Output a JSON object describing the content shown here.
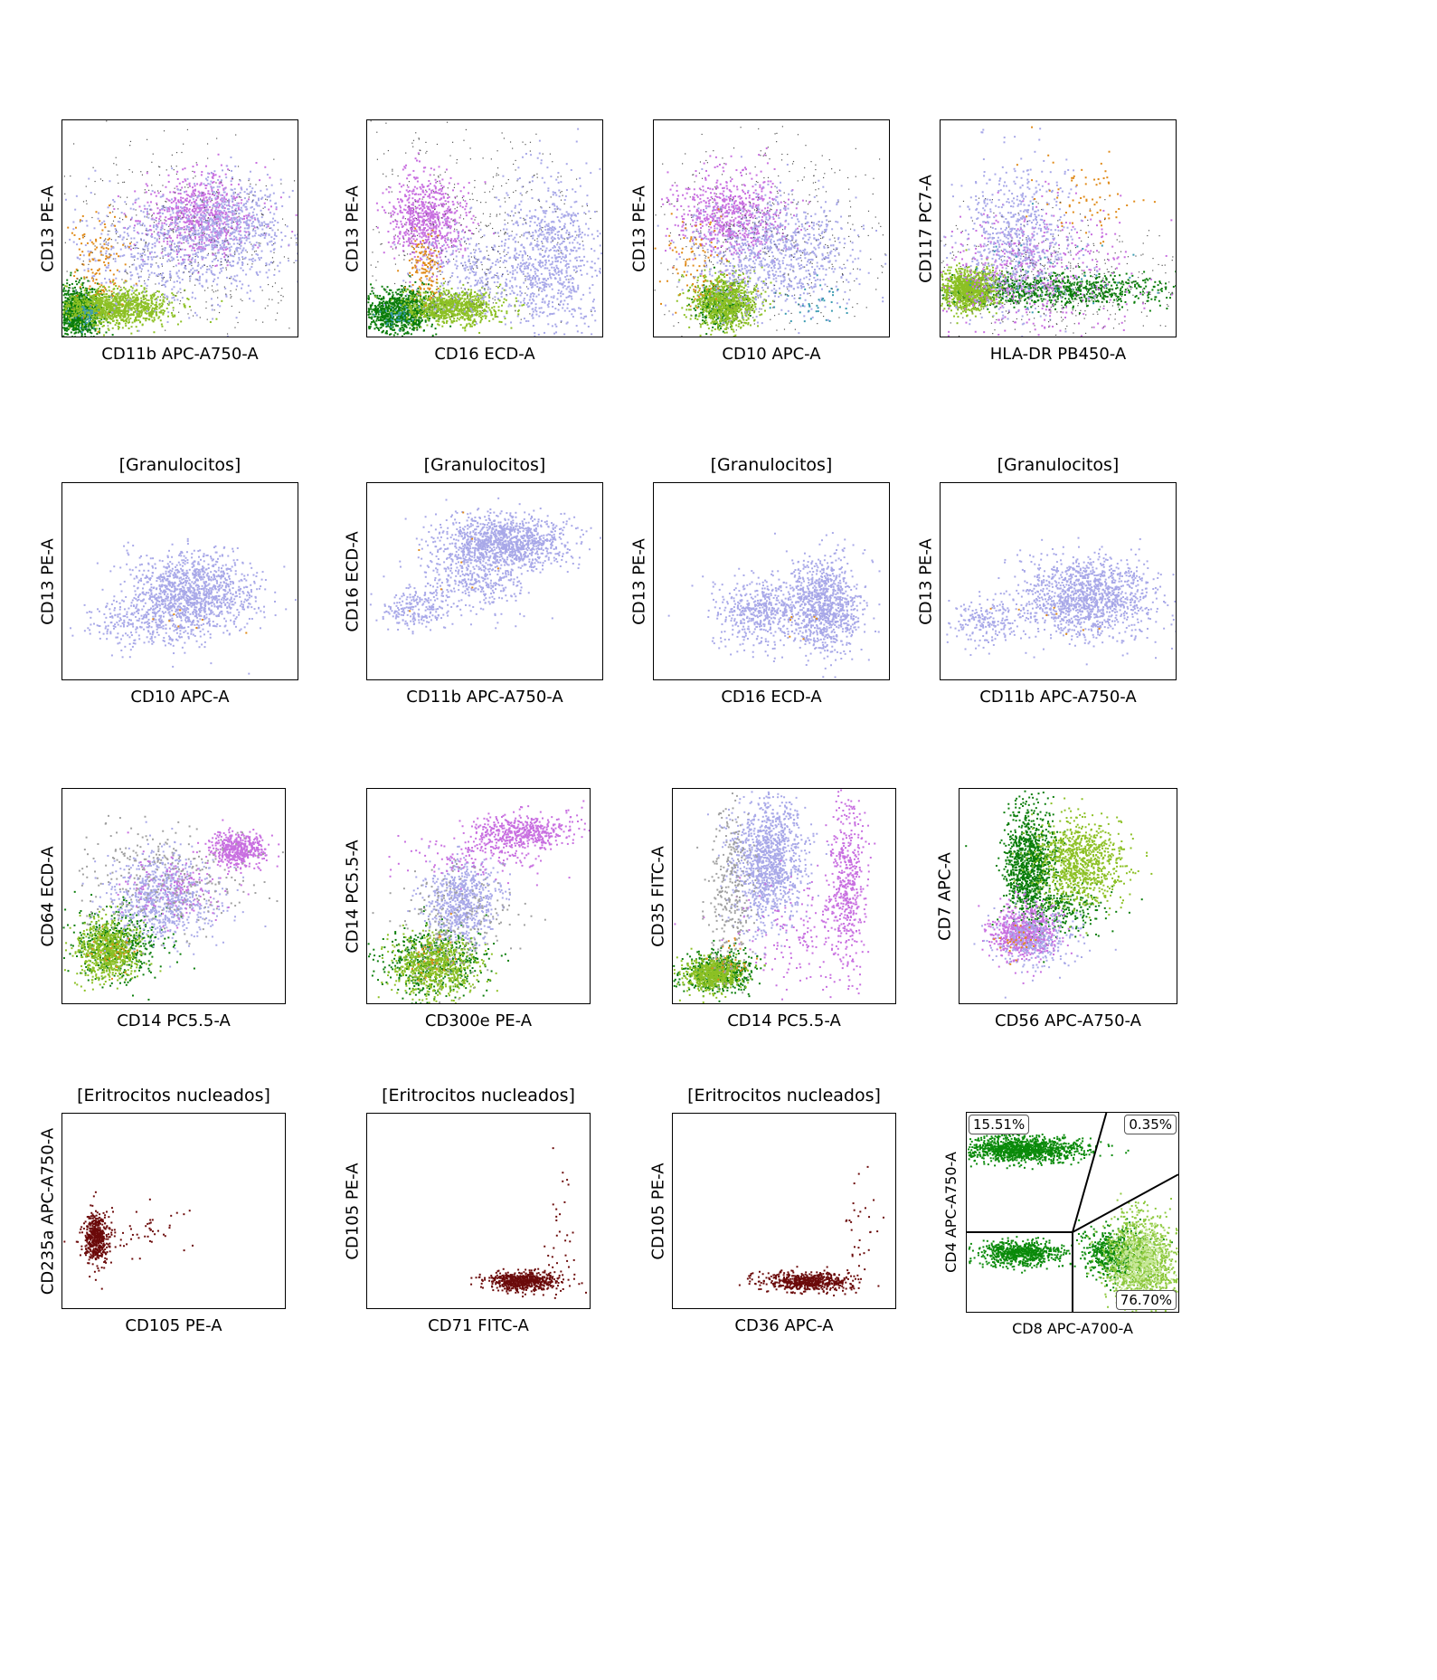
{
  "chart_data": [
    {
      "type": "scatter",
      "title": "",
      "xlabel": "CD11b APC-A750-A",
      "ylabel": "CD13 PE-A",
      "series": [
        {
          "color": "#0a7d0a",
          "clusters": [
            [
              0.06,
              0.12,
              0.05,
              0.06,
              900
            ]
          ]
        },
        {
          "color": "#8cc024",
          "clusters": [
            [
              0.22,
              0.14,
              0.12,
              0.04,
              1100
            ]
          ]
        },
        {
          "color": "#c86fe0",
          "clusters": [
            [
              0.58,
              0.56,
              0.12,
              0.1,
              700
            ]
          ]
        },
        {
          "color": "#a8a8e8",
          "clusters": [
            [
              0.5,
              0.42,
              0.22,
              0.12,
              800
            ],
            [
              0.72,
              0.55,
              0.1,
              0.1,
              400
            ]
          ]
        },
        {
          "color": "#e08a18",
          "clusters": [
            [
              0.15,
              0.35,
              0.06,
              0.1,
              120
            ]
          ]
        },
        {
          "color": "#3a9ab0",
          "clusters": [
            [
              0.1,
              0.1,
              0.03,
              0.03,
              40
            ]
          ]
        },
        {
          "color": "#505050",
          "clusters": [
            [
              0.5,
              0.45,
              0.3,
              0.25,
              500
            ]
          ]
        }
      ]
    },
    {
      "type": "scatter",
      "title": "",
      "xlabel": "CD16 ECD-A",
      "ylabel": "CD13 PE-A",
      "series": [
        {
          "color": "#0a7d0a",
          "clusters": [
            [
              0.13,
              0.12,
              0.08,
              0.05,
              900
            ]
          ]
        },
        {
          "color": "#8cc024",
          "clusters": [
            [
              0.36,
              0.14,
              0.1,
              0.04,
              900
            ]
          ]
        },
        {
          "color": "#c86fe0",
          "clusters": [
            [
              0.25,
              0.55,
              0.08,
              0.1,
              700
            ]
          ]
        },
        {
          "color": "#a8a8e8",
          "clusters": [
            [
              0.78,
              0.35,
              0.1,
              0.18,
              800
            ],
            [
              0.45,
              0.3,
              0.12,
              0.1,
              300
            ]
          ]
        },
        {
          "color": "#e08a18",
          "clusters": [
            [
              0.24,
              0.32,
              0.04,
              0.08,
              120
            ]
          ]
        },
        {
          "color": "#3a9ab0",
          "clusters": [
            [
              0.12,
              0.1,
              0.04,
              0.03,
              40
            ]
          ]
        },
        {
          "color": "#505050",
          "clusters": [
            [
              0.4,
              0.5,
              0.3,
              0.25,
              500
            ]
          ]
        }
      ]
    },
    {
      "type": "scatter",
      "title": "",
      "xlabel": "CD10 APC-A",
      "ylabel": "CD13 PE-A",
      "series": [
        {
          "color": "#0a7d0a",
          "clusters": [
            [
              0.28,
              0.15,
              0.05,
              0.05,
              300
            ]
          ]
        },
        {
          "color": "#8cc024",
          "clusters": [
            [
              0.3,
              0.16,
              0.07,
              0.06,
              900
            ]
          ]
        },
        {
          "color": "#c86fe0",
          "clusters": [
            [
              0.32,
              0.56,
              0.12,
              0.1,
              700
            ]
          ]
        },
        {
          "color": "#a8a8e8",
          "clusters": [
            [
              0.5,
              0.4,
              0.18,
              0.13,
              900
            ]
          ]
        },
        {
          "color": "#e08a18",
          "clusters": [
            [
              0.18,
              0.34,
              0.08,
              0.1,
              90
            ]
          ]
        },
        {
          "color": "#3a9ab0",
          "clusters": [
            [
              0.68,
              0.16,
              0.07,
              0.05,
              40
            ]
          ]
        },
        {
          "color": "#505050",
          "clusters": [
            [
              0.45,
              0.45,
              0.3,
              0.25,
              500
            ]
          ]
        }
      ]
    },
    {
      "type": "scatter",
      "title": "",
      "xlabel": "HLA-DR PB450-A",
      "ylabel": "CD117 PC7-A",
      "series": [
        {
          "color": "#0a7d0a",
          "clusters": [
            [
              0.45,
              0.22,
              0.3,
              0.04,
              900
            ]
          ]
        },
        {
          "color": "#8cc024",
          "clusters": [
            [
              0.12,
              0.22,
              0.06,
              0.05,
              1000
            ]
          ]
        },
        {
          "color": "#c86fe0",
          "clusters": [
            [
              0.4,
              0.3,
              0.2,
              0.15,
              500
            ]
          ]
        },
        {
          "color": "#a8a8e8",
          "clusters": [
            [
              0.32,
              0.45,
              0.12,
              0.18,
              700
            ]
          ]
        },
        {
          "color": "#e08a18",
          "clusters": [
            [
              0.62,
              0.66,
              0.12,
              0.1,
              70
            ]
          ]
        },
        {
          "color": "#3a9ab0",
          "clusters": [
            [
              0.5,
              0.3,
              0.2,
              0.1,
              40
            ]
          ]
        },
        {
          "color": "#505050",
          "clusters": [
            [
              0.45,
              0.25,
              0.3,
              0.15,
              500
            ]
          ]
        }
      ]
    },
    {
      "type": "scatter",
      "title": "[Granulocitos]",
      "xlabel": "CD10 APC-A",
      "ylabel": "CD13 PE-A",
      "series": [
        {
          "color": "#a8a8e8",
          "clusters": [
            [
              0.55,
              0.45,
              0.13,
              0.1,
              1200
            ],
            [
              0.35,
              0.3,
              0.12,
              0.08,
              300
            ]
          ]
        },
        {
          "color": "#e08a18",
          "clusters": [
            [
              0.5,
              0.3,
              0.1,
              0.05,
              8
            ]
          ]
        }
      ]
    },
    {
      "type": "scatter",
      "title": "[Granulocitos]",
      "xlabel": "CD11b APC-A750-A",
      "ylabel": "CD16 ECD-A",
      "series": [
        {
          "color": "#a8a8e8",
          "clusters": [
            [
              0.57,
              0.7,
              0.14,
              0.07,
              1200
            ],
            [
              0.45,
              0.5,
              0.12,
              0.08,
              350
            ],
            [
              0.2,
              0.37,
              0.07,
              0.05,
              200
            ]
          ]
        },
        {
          "color": "#e08a18",
          "clusters": [
            [
              0.45,
              0.6,
              0.12,
              0.08,
              8
            ]
          ]
        }
      ]
    },
    {
      "type": "scatter",
      "title": "[Granulocitos]",
      "xlabel": "CD16 ECD-A",
      "ylabel": "CD13 PE-A",
      "series": [
        {
          "color": "#a8a8e8",
          "clusters": [
            [
              0.72,
              0.38,
              0.08,
              0.12,
              1000
            ],
            [
              0.45,
              0.35,
              0.1,
              0.09,
              500
            ]
          ]
        },
        {
          "color": "#e08a18",
          "clusters": [
            [
              0.65,
              0.3,
              0.1,
              0.08,
              6
            ]
          ]
        }
      ]
    },
    {
      "type": "scatter",
      "title": "[Granulocitos]",
      "xlabel": "CD11b APC-A750-A",
      "ylabel": "CD13 PE-A",
      "series": [
        {
          "color": "#a8a8e8",
          "clusters": [
            [
              0.62,
              0.42,
              0.14,
              0.1,
              1300
            ],
            [
              0.2,
              0.3,
              0.08,
              0.06,
              200
            ]
          ]
        },
        {
          "color": "#e08a18",
          "clusters": [
            [
              0.5,
              0.3,
              0.12,
              0.06,
              8
            ]
          ]
        }
      ]
    },
    {
      "type": "scatter",
      "title": "",
      "xlabel": "CD14 PC5.5-A",
      "ylabel": "CD64 ECD-A",
      "series": [
        {
          "color": "#0a7d0a",
          "clusters": [
            [
              0.25,
              0.28,
              0.1,
              0.08,
              500
            ]
          ]
        },
        {
          "color": "#8cc024",
          "clusters": [
            [
              0.2,
              0.25,
              0.07,
              0.07,
              700
            ]
          ]
        },
        {
          "color": "#a8a8e8",
          "clusters": [
            [
              0.45,
              0.5,
              0.12,
              0.1,
              800
            ]
          ]
        },
        {
          "color": "#c86fe0",
          "clusters": [
            [
              0.78,
              0.72,
              0.06,
              0.04,
              500
            ],
            [
              0.5,
              0.55,
              0.12,
              0.08,
              150
            ]
          ]
        },
        {
          "color": "#e08a18",
          "clusters": [
            [
              0.2,
              0.25,
              0.05,
              0.05,
              30
            ]
          ]
        },
        {
          "color": "#a0a0a0",
          "clusters": [
            [
              0.45,
              0.6,
              0.2,
              0.12,
              300
            ]
          ]
        }
      ]
    },
    {
      "type": "scatter",
      "title": "",
      "xlabel": "CD300e PE-A",
      "ylabel": "CD14 PC5.5-A",
      "series": [
        {
          "color": "#0a7d0a",
          "clusters": [
            [
              0.3,
              0.2,
              0.12,
              0.08,
              500
            ]
          ]
        },
        {
          "color": "#8cc024",
          "clusters": [
            [
              0.3,
              0.18,
              0.09,
              0.07,
              700
            ]
          ]
        },
        {
          "color": "#a8a8e8",
          "clusters": [
            [
              0.42,
              0.48,
              0.08,
              0.1,
              700
            ]
          ]
        },
        {
          "color": "#c86fe0",
          "clusters": [
            [
              0.7,
              0.8,
              0.12,
              0.04,
              500
            ],
            [
              0.5,
              0.7,
              0.15,
              0.06,
              150
            ]
          ]
        },
        {
          "color": "#e08a18",
          "clusters": [
            [
              0.3,
              0.2,
              0.06,
              0.06,
              30
            ]
          ]
        },
        {
          "color": "#a0a0a0",
          "clusters": [
            [
              0.4,
              0.4,
              0.15,
              0.12,
              200
            ]
          ]
        }
      ]
    },
    {
      "type": "scatter",
      "title": "",
      "xlabel": "CD14 PC5.5-A",
      "ylabel": "CD35 FITC-A",
      "series": [
        {
          "color": "#0a7d0a",
          "clusters": [
            [
              0.2,
              0.15,
              0.08,
              0.05,
              500
            ]
          ]
        },
        {
          "color": "#8cc024",
          "clusters": [
            [
              0.18,
              0.14,
              0.06,
              0.04,
              600
            ]
          ]
        },
        {
          "color": "#a8a8e8",
          "clusters": [
            [
              0.42,
              0.68,
              0.08,
              0.15,
              1200
            ]
          ]
        },
        {
          "color": "#c86fe0",
          "clusters": [
            [
              0.78,
              0.55,
              0.04,
              0.2,
              500
            ],
            [
              0.55,
              0.35,
              0.12,
              0.12,
              150
            ]
          ]
        },
        {
          "color": "#e08a18",
          "clusters": [
            [
              0.25,
              0.2,
              0.06,
              0.06,
              30
            ]
          ]
        },
        {
          "color": "#a0a0a0",
          "clusters": [
            [
              0.25,
              0.5,
              0.05,
              0.2,
              300
            ]
          ]
        }
      ]
    },
    {
      "type": "scatter",
      "title": "",
      "xlabel": "CD56 APC-A750-A",
      "ylabel": "CD7 APC-A",
      "series": [
        {
          "color": "#0a7d0a",
          "clusters": [
            [
              0.32,
              0.65,
              0.06,
              0.14,
              1100
            ],
            [
              0.5,
              0.45,
              0.1,
              0.06,
              200
            ]
          ]
        },
        {
          "color": "#8cc024",
          "clusters": [
            [
              0.55,
              0.65,
              0.1,
              0.1,
              900
            ]
          ]
        },
        {
          "color": "#c86fe0",
          "clusters": [
            [
              0.3,
              0.33,
              0.08,
              0.06,
              700
            ]
          ]
        },
        {
          "color": "#a8a8e8",
          "clusters": [
            [
              0.35,
              0.3,
              0.1,
              0.07,
              300
            ]
          ]
        },
        {
          "color": "#e08a18",
          "clusters": [
            [
              0.26,
              0.28,
              0.05,
              0.05,
              30
            ]
          ]
        }
      ]
    },
    {
      "type": "scatter",
      "title": "[Eritrocitos nucleados]",
      "xlabel": "CD105 PE-A",
      "ylabel": "CD235a APC-A750-A",
      "series": [
        {
          "color": "#6b0a0a",
          "clusters": [
            [
              0.15,
              0.36,
              0.025,
              0.06,
              500
            ],
            [
              0.3,
              0.4,
              0.12,
              0.06,
              60
            ]
          ]
        }
      ]
    },
    {
      "type": "scatter",
      "title": "[Eritrocitos nucleados]",
      "xlabel": "CD71 FITC-A",
      "ylabel": "CD105 PE-A",
      "series": [
        {
          "color": "#6b0a0a",
          "clusters": [
            [
              0.7,
              0.14,
              0.08,
              0.025,
              600
            ],
            [
              0.85,
              0.4,
              0.04,
              0.2,
              30
            ]
          ]
        }
      ]
    },
    {
      "type": "scatter",
      "title": "[Eritrocitos nucleados]",
      "xlabel": "CD36 APC-A",
      "ylabel": "CD105 PE-A",
      "series": [
        {
          "color": "#6b0a0a",
          "clusters": [
            [
              0.6,
              0.14,
              0.1,
              0.025,
              600
            ],
            [
              0.85,
              0.4,
              0.05,
              0.15,
              30
            ]
          ]
        }
      ]
    },
    {
      "type": "scatter",
      "title": "",
      "xlabel": "CD8 APC-A700-A",
      "ylabel": "CD4 APC-A750-A",
      "quadrants": {
        "top_left": "15.51%",
        "top_right": "0.35%",
        "bottom_right": "76.70%"
      },
      "series": [
        {
          "color": "#0a8a0a",
          "clusters": [
            [
              0.25,
              0.82,
              0.15,
              0.03,
              1200
            ],
            [
              0.25,
              0.3,
              0.1,
              0.03,
              700
            ],
            [
              0.7,
              0.3,
              0.08,
              0.06,
              600
            ]
          ]
        },
        {
          "color": "#8cc83c",
          "clusters": [
            [
              0.82,
              0.25,
              0.08,
              0.12,
              1200
            ]
          ]
        },
        {
          "color": "#c8e89a",
          "clusters": [
            [
              0.82,
              0.25,
              0.06,
              0.08,
              400
            ]
          ]
        }
      ]
    }
  ]
}
